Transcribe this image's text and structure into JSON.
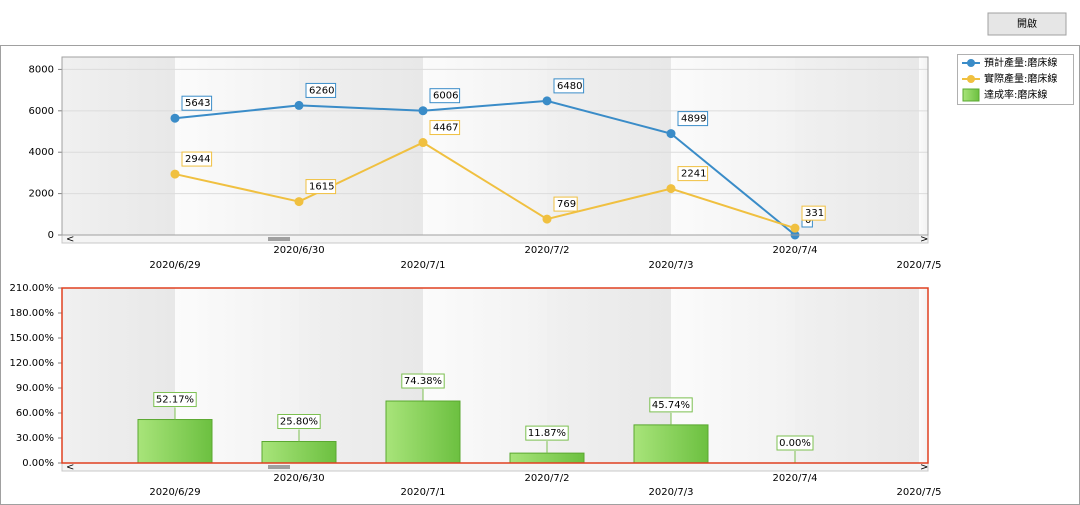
{
  "button": "開啟",
  "chart_data": [
    {
      "type": "line",
      "categories": [
        "2020/6/29",
        "2020/6/30",
        "2020/7/1",
        "2020/7/2",
        "2020/7/3",
        "2020/7/4",
        "2020/7/5"
      ],
      "series": [
        {
          "name": "預計產量:磨床線",
          "color": "#3a8cc8",
          "values": [
            5643,
            6260,
            6006,
            6480,
            4899,
            0,
            null
          ]
        },
        {
          "name": "實際產量:磨床線",
          "color": "#f0c040",
          "values": [
            2944,
            1615,
            4467,
            769,
            2241,
            331,
            null
          ]
        }
      ],
      "ylim": [
        0,
        8600
      ],
      "yticks": [
        0,
        2000,
        4000,
        6000,
        8000
      ],
      "grid": true
    },
    {
      "type": "bar",
      "categories": [
        "2020/6/29",
        "2020/6/30",
        "2020/7/1",
        "2020/7/2",
        "2020/7/3",
        "2020/7/4",
        "2020/7/5"
      ],
      "series": [
        {
          "name": "達成率:磨床線",
          "color": "#86d05a",
          "values": [
            52.17,
            25.8,
            74.38,
            11.87,
            45.74,
            0,
            null
          ],
          "value_labels": [
            "52.17%",
            "25.80%",
            "74.38%",
            "11.87%",
            "45.74%",
            "0.00%",
            null
          ]
        }
      ],
      "ylim": [
        0,
        210
      ],
      "yticks": [
        {
          "value": 0,
          "label": "0.00%"
        },
        {
          "value": 30,
          "label": "30.00%"
        },
        {
          "value": 60,
          "label": "60.00%"
        },
        {
          "value": 90,
          "label": "90.00%"
        },
        {
          "value": 120,
          "label": "120.00%"
        },
        {
          "value": 150,
          "label": "150.00%"
        },
        {
          "value": 180,
          "label": "180.00%"
        },
        {
          "value": 210,
          "label": "210.00%"
        }
      ],
      "grid": false
    }
  ]
}
